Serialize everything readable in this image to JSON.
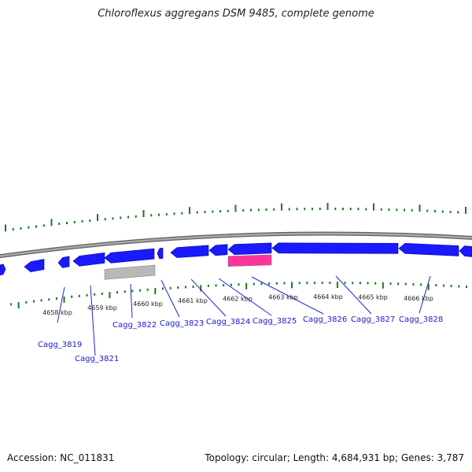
{
  "title": "Chloroflexus aggregans DSM 9485, complete genome",
  "footer": {
    "accession": "Accession: NC_011831",
    "info": "Topology: circular; Length: 4,684,931 bp; Genes: 3,787"
  },
  "colors": {
    "backbone": "#888888",
    "gene_forward": "#1a1aff",
    "gene_reverse": "#1a1aff",
    "gene_gray": "#b8b8b8",
    "gene_pink": "#ff3399",
    "tick": "#1a7a1a",
    "label": "#1a1acc",
    "leader": "#2222cc"
  },
  "axis": {
    "unit": "kbp",
    "kbp_values": [
      4658,
      4659,
      4660,
      4661,
      4662,
      4663,
      4664,
      4665,
      4666
    ]
  },
  "genes": [
    {
      "name": "Cagg_3819"
    },
    {
      "name": "Cagg_3821"
    },
    {
      "name": "Cagg_3822"
    },
    {
      "name": "Cagg_3823"
    },
    {
      "name": "Cagg_3824"
    },
    {
      "name": "Cagg_3825"
    },
    {
      "name": "Cagg_3826"
    },
    {
      "name": "Cagg_3827"
    },
    {
      "name": "Cagg_3828"
    }
  ]
}
